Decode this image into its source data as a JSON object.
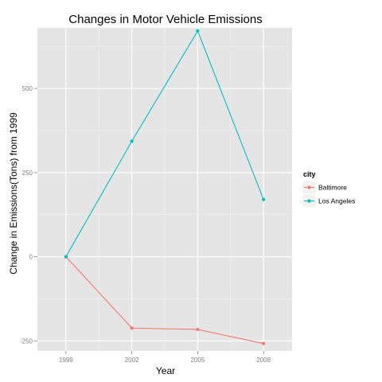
{
  "chart_data": {
    "type": "line",
    "title": "Changes in Motor Vehicle Emissions",
    "xlabel": "Year",
    "ylabel": "Change in Emissions(Tons) from 1999",
    "x": [
      1999,
      2002,
      2005,
      2008
    ],
    "x_tick_labels": [
      "1999",
      "2002",
      "2005",
      "2008"
    ],
    "y_ticks": [
      -250,
      0,
      250,
      500
    ],
    "y_tick_labels": [
      "-250",
      "0",
      "250",
      "500"
    ],
    "xlim": [
      1997.7,
      2009.3
    ],
    "ylim": [
      -280,
      680
    ],
    "grid": true,
    "legend": {
      "title": "city",
      "position": "right"
    },
    "series": [
      {
        "name": "Baltimore",
        "color": "#F8766D",
        "values": [
          0,
          -212,
          -216,
          -258
        ]
      },
      {
        "name": "Los Angeles",
        "color": "#00BFC4",
        "values": [
          0,
          343,
          671,
          170
        ]
      }
    ]
  }
}
